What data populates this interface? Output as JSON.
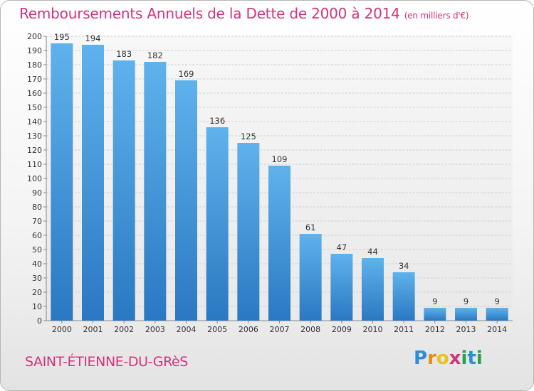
{
  "chart_data": {
    "type": "bar",
    "title": "Remboursements Annuels de la Dette de 2000 à 2014",
    "unit_label": "(en milliers d'€)",
    "categories": [
      "2000",
      "2001",
      "2002",
      "2003",
      "2004",
      "2005",
      "2006",
      "2007",
      "2008",
      "2009",
      "2010",
      "2011",
      "2012",
      "2013",
      "2014"
    ],
    "values": [
      195,
      194,
      183,
      182,
      169,
      136,
      125,
      109,
      61,
      47,
      44,
      34,
      9,
      9,
      9
    ],
    "ylim": [
      0,
      200
    ],
    "ytick_step": 10,
    "grid": true,
    "xlabel": "",
    "ylabel": "",
    "bar_color": "#3d8fd6"
  },
  "footer": {
    "commune": "SAINT-ÉTIENNE-DU-GRèS",
    "brand_letters": [
      "P",
      "r",
      "o",
      "x",
      "i",
      "t",
      "i"
    ],
    "brand_colors": [
      "#2a8fd8",
      "#e88a1a",
      "#e8c31a",
      "#d2337c",
      "#2aa04a",
      "#2a8fd8",
      "#2aa04a"
    ]
  }
}
